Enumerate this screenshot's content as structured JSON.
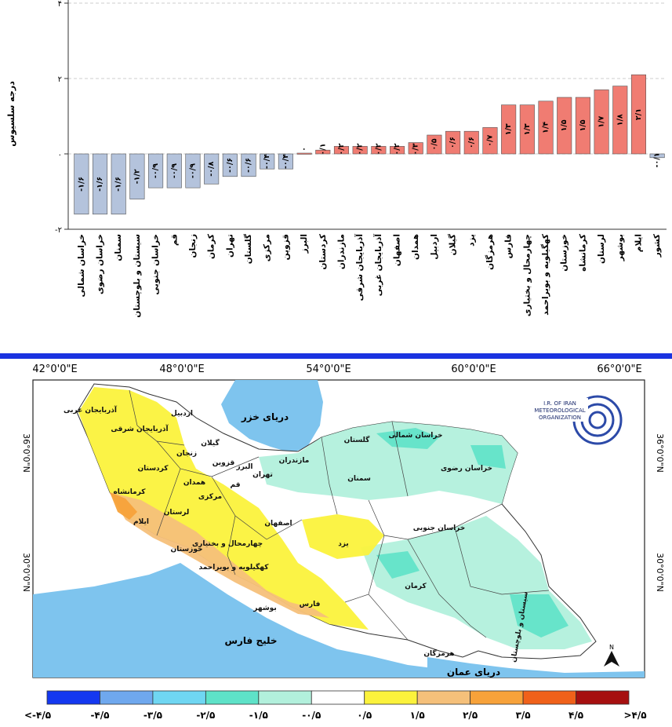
{
  "chart_data": {
    "type": "bar",
    "ylabel": "درجه سلسیوس",
    "ylim": [
      -2,
      4
    ],
    "yticks": [
      "۴",
      "۲",
      "۰",
      "-۲"
    ],
    "ytick_values": [
      4,
      2,
      0,
      -2
    ],
    "negative_color": "#b4c3dc",
    "positive_color": "#f07c72",
    "bars": [
      {
        "name": "خراسان شمالی",
        "value": -1.6,
        "label": "-۱/۶"
      },
      {
        "name": "خراسان رضوی",
        "value": -1.6,
        "label": "-۱/۶"
      },
      {
        "name": "سمنان",
        "value": -1.6,
        "label": "-۱/۶"
      },
      {
        "name": "سیستان و بلوچستان",
        "value": -1.2,
        "label": "-۱/۲"
      },
      {
        "name": "خراسان جنوبی",
        "value": -0.9,
        "label": "-۰/۹"
      },
      {
        "name": "قم",
        "value": -0.9,
        "label": "-۰/۹"
      },
      {
        "name": "زنجان",
        "value": -0.9,
        "label": "-۰/۹"
      },
      {
        "name": "کرمان",
        "value": -0.8,
        "label": "-۰/۸"
      },
      {
        "name": "تهران",
        "value": -0.6,
        "label": "-۰/۶"
      },
      {
        "name": "گلستان",
        "value": -0.6,
        "label": "-۰/۶"
      },
      {
        "name": "مرکزی",
        "value": -0.4,
        "label": "-۰/۴"
      },
      {
        "name": "قزوین",
        "value": -0.4,
        "label": "-۰/۴"
      },
      {
        "name": "البرز",
        "value": 0.0,
        "label": "۰"
      },
      {
        "name": "کردستان",
        "value": 0.1,
        "label": "۰/۱"
      },
      {
        "name": "مازندران",
        "value": 0.2,
        "label": "۰/۲"
      },
      {
        "name": "آذربایجان شرقی",
        "value": 0.2,
        "label": "۰/۲"
      },
      {
        "name": "آذربایجان غربی",
        "value": 0.2,
        "label": "۰/۲"
      },
      {
        "name": "اصفهان",
        "value": 0.2,
        "label": "۰/۲"
      },
      {
        "name": "همدان",
        "value": 0.3,
        "label": "۰/۳"
      },
      {
        "name": "اردبیل",
        "value": 0.5,
        "label": "۰/۵"
      },
      {
        "name": "گیلان",
        "value": 0.6,
        "label": "۰/۶"
      },
      {
        "name": "یزد",
        "value": 0.6,
        "label": "۰/۶"
      },
      {
        "name": "هرمزگان",
        "value": 0.7,
        "label": "۰/۷"
      },
      {
        "name": "فارس",
        "value": 1.3,
        "label": "۱/۳"
      },
      {
        "name": "چهارمحال و بختیاری",
        "value": 1.3,
        "label": "۱/۳"
      },
      {
        "name": "کهگیلویه و بویراحمد",
        "value": 1.4,
        "label": "۱/۴"
      },
      {
        "name": "خوزستان",
        "value": 1.5,
        "label": "۱/۵"
      },
      {
        "name": "کرمانشاه",
        "value": 1.5,
        "label": "۱/۵"
      },
      {
        "name": "لرستان",
        "value": 1.7,
        "label": "۱/۷"
      },
      {
        "name": "بوشهر",
        "value": 1.8,
        "label": "۱/۸"
      },
      {
        "name": "ایلام",
        "value": 2.1,
        "label": "۲/۱"
      },
      {
        "name": "کشور",
        "value": -0.1,
        "label": "-۰/۱"
      }
    ]
  },
  "map": {
    "longitude_labels": [
      "42°0'0\"E",
      "48°0'0\"E",
      "54°0'0\"E",
      "60°0'0\"E",
      "66°0'0\"E"
    ],
    "latitude_labels": [
      "36°0'0\"N",
      "30°0'0\"N"
    ],
    "water_labels": [
      "دریای خزر",
      "خلیج فارس",
      "دریای عمان"
    ],
    "province_labels": [
      "آذربایجان غربی",
      "آذربایجان شرقی",
      "اردبیل",
      "زنجان",
      "گیلان",
      "کردستان",
      "قزوین",
      "البرز",
      "مازندران",
      "گلستان",
      "خراسان شمالی",
      "خراسان رضوی",
      "سمنان",
      "تهران",
      "قم",
      "همدان",
      "مرکزی",
      "کرمانشاه",
      "لرستان",
      "ایلام",
      "اصفهان",
      "خوزستان",
      "چهارمحال و بختیاری",
      "کهگیلویه و بویراحمد",
      "یزد",
      "خراسان جنوبی",
      "کرمان",
      "فارس",
      "بوشهر",
      "هرمزگان",
      "سیستان و بلوچستان"
    ],
    "north_arrow_label": "N",
    "logo": {
      "text_lines": [
        "I.R. OF IRAN",
        "METEOROLOGICAL",
        "ORGANIZATION"
      ]
    }
  },
  "legend": {
    "colors": [
      "#1438f0",
      "#6fa8ee",
      "#6fd6f2",
      "#5ee2c8",
      "#b2f0dc",
      "#ffffff",
      "#fbf23c",
      "#f5c07a",
      "#f7a23a",
      "#f0611a",
      "#a61010"
    ],
    "labels": [
      "<-۴/۵",
      "-۴/۵",
      "-۳/۵",
      "-۲/۵",
      "-۱/۵",
      "-۰/۵",
      "۰/۵",
      "۱/۵",
      "۲/۵",
      "۳/۵",
      "۴/۵",
      ">۴/۵"
    ]
  },
  "divider_color": "#1a33e0"
}
